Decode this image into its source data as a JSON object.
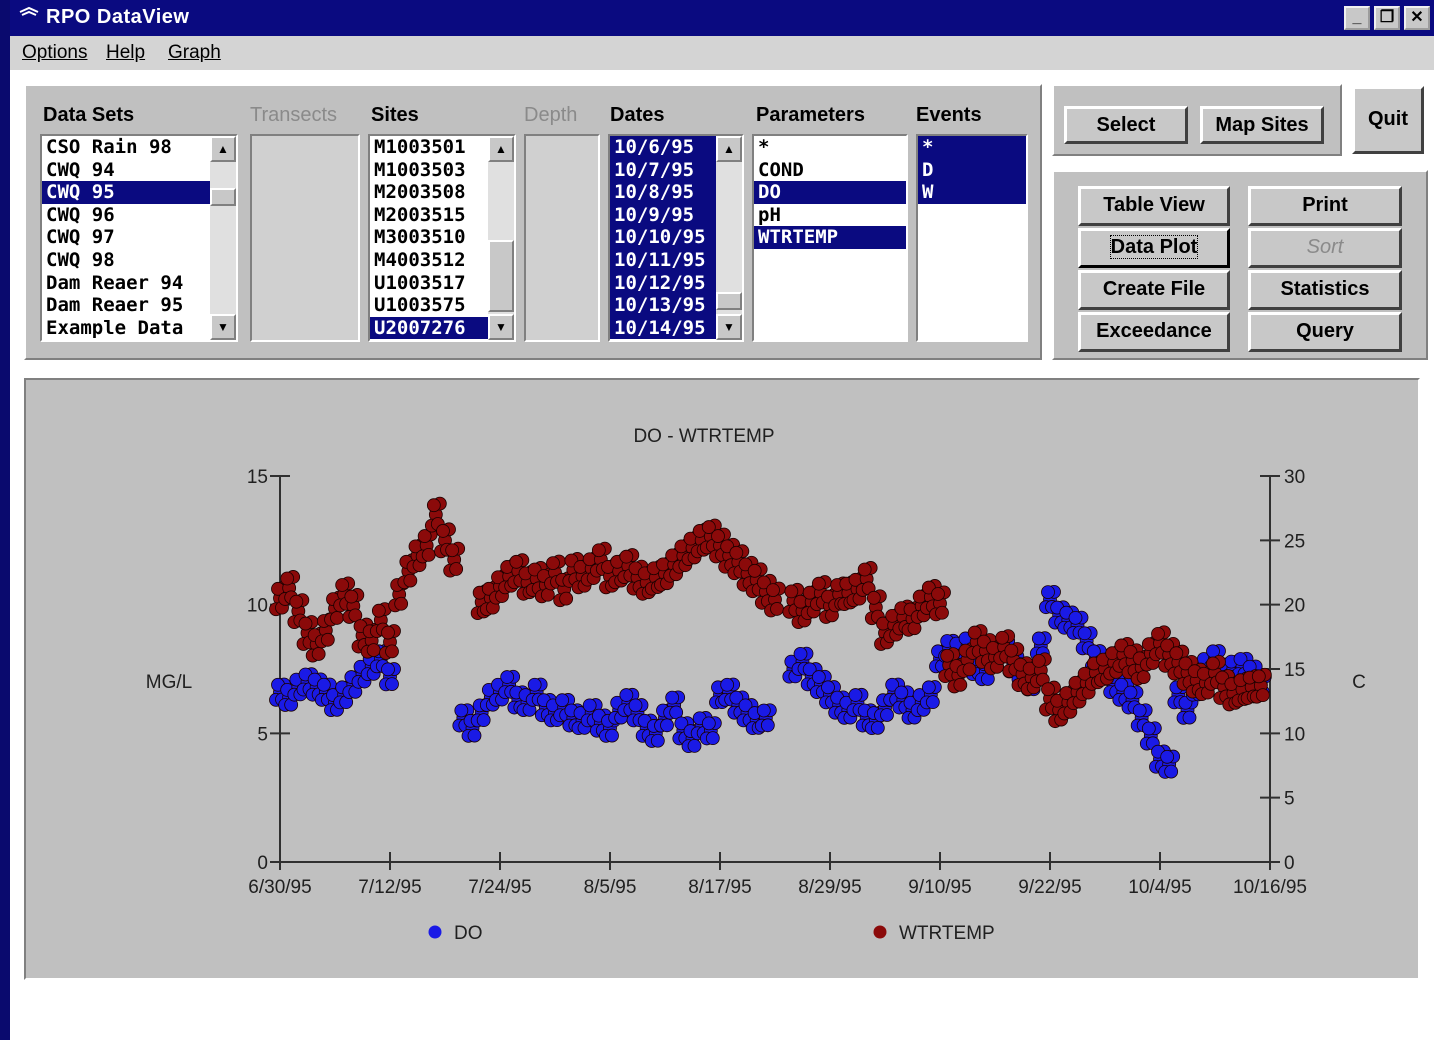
{
  "window": {
    "title": "RPO DataView",
    "controls": [
      "_",
      "❐",
      "✕"
    ]
  },
  "menu": [
    {
      "label": "Options"
    },
    {
      "label": "Help"
    },
    {
      "label": "Graph"
    }
  ],
  "headers": {
    "data_sets": "Data Sets",
    "transects": "Transects",
    "sites": "Sites",
    "depth": "Depth",
    "dates": "Dates",
    "parameters": "Parameters",
    "events": "Events"
  },
  "data_sets": [
    {
      "label": "CSO Rain 98",
      "selected": false
    },
    {
      "label": "CWQ 94",
      "selected": false
    },
    {
      "label": "CWQ 95",
      "selected": true
    },
    {
      "label": "CWQ 96",
      "selected": false
    },
    {
      "label": "CWQ 97",
      "selected": false
    },
    {
      "label": "CWQ 98",
      "selected": false
    },
    {
      "label": "Dam Reaer 94",
      "selected": false
    },
    {
      "label": "Dam Reaer 95",
      "selected": false
    },
    {
      "label": "Example Data",
      "selected": false
    }
  ],
  "sites": [
    {
      "label": "M1003501",
      "selected": false
    },
    {
      "label": "M1003503",
      "selected": false
    },
    {
      "label": "M2003508",
      "selected": false
    },
    {
      "label": "M2003515",
      "selected": false
    },
    {
      "label": "M3003510",
      "selected": false
    },
    {
      "label": "M4003512",
      "selected": false
    },
    {
      "label": "U1003517",
      "selected": false
    },
    {
      "label": "U1003575",
      "selected": false
    },
    {
      "label": "U2007276",
      "selected": true
    }
  ],
  "dates": [
    {
      "label": "10/6/95",
      "selected": true
    },
    {
      "label": "10/7/95",
      "selected": true
    },
    {
      "label": "10/8/95",
      "selected": true
    },
    {
      "label": "10/9/95",
      "selected": true
    },
    {
      "label": "10/10/95",
      "selected": true
    },
    {
      "label": "10/11/95",
      "selected": true
    },
    {
      "label": "10/12/95",
      "selected": true
    },
    {
      "label": "10/13/95",
      "selected": true
    },
    {
      "label": "10/14/95",
      "selected": true
    }
  ],
  "parameters": [
    {
      "label": "*",
      "selected": false
    },
    {
      "label": "COND",
      "selected": false
    },
    {
      "label": "DO",
      "selected": true
    },
    {
      "label": "pH",
      "selected": false
    },
    {
      "label": "WTRTEMP",
      "selected": true
    }
  ],
  "events": [
    {
      "label": "*",
      "selected": true
    },
    {
      "label": "D",
      "selected": true
    },
    {
      "label": "W",
      "selected": true
    }
  ],
  "buttons": {
    "select": "Select",
    "map_sites": "Map Sites",
    "quit": "Quit",
    "table_view": "Table View",
    "print": "Print",
    "data_plot": "Data Plot",
    "sort": "Sort",
    "create_file": "Create File",
    "statistics": "Statistics",
    "exceedance": "Exceedance",
    "query": "Query"
  },
  "colors": {
    "selection": "#0a0a80",
    "do_series": "#1a1ae6",
    "wtrtemp_series": "#8b0a0a"
  },
  "chart_data": {
    "type": "scatter",
    "title": "DO - WTRTEMP",
    "ylabel": "MG/L",
    "y2label": "C",
    "ylim": [
      0,
      15
    ],
    "y2lim": [
      0,
      30
    ],
    "yticks": [
      0,
      5,
      10,
      15
    ],
    "y2ticks": [
      0,
      5,
      10,
      15,
      20,
      25,
      30
    ],
    "xlim": [
      "6/30/95",
      "10/16/95"
    ],
    "xticks": [
      "6/30/95",
      "7/12/95",
      "7/24/95",
      "8/5/95",
      "8/17/95",
      "8/29/95",
      "9/10/95",
      "9/22/95",
      "10/4/95",
      "10/16/95"
    ],
    "legend_position": "bottom",
    "series": [
      {
        "name": "DO",
        "axis": "left",
        "color": "#1a1ae6",
        "points": [
          [
            "6/30/95",
            6.6
          ],
          [
            "7/1/95",
            6.4
          ],
          [
            "7/2/95",
            6.8
          ],
          [
            "7/3/95",
            7.0
          ],
          [
            "7/4/95",
            6.8
          ],
          [
            "7/5/95",
            6.6
          ],
          [
            "7/6/95",
            6.2
          ],
          [
            "7/7/95",
            6.5
          ],
          [
            "7/8/95",
            6.9
          ],
          [
            "7/9/95",
            7.3
          ],
          [
            "7/10/95",
            7.6
          ],
          [
            "7/11/95",
            7.9
          ],
          [
            "7/12/95",
            7.2
          ],
          [
            "7/20/95",
            5.6
          ],
          [
            "7/21/95",
            5.2
          ],
          [
            "7/22/95",
            5.8
          ],
          [
            "7/23/95",
            6.4
          ],
          [
            "7/24/95",
            6.6
          ],
          [
            "7/25/95",
            6.9
          ],
          [
            "7/26/95",
            6.3
          ],
          [
            "7/27/95",
            6.2
          ],
          [
            "7/28/95",
            6.6
          ],
          [
            "7/29/95",
            6.0
          ],
          [
            "7/30/95",
            5.8
          ],
          [
            "7/31/95",
            6.0
          ],
          [
            "8/1/95",
            5.6
          ],
          [
            "8/2/95",
            5.5
          ],
          [
            "8/3/95",
            5.8
          ],
          [
            "8/4/95",
            5.4
          ],
          [
            "8/5/95",
            5.2
          ],
          [
            "8/6/95",
            5.9
          ],
          [
            "8/7/95",
            6.2
          ],
          [
            "8/8/95",
            5.8
          ],
          [
            "8/9/95",
            5.2
          ],
          [
            "8/10/95",
            5.0
          ],
          [
            "8/11/95",
            5.6
          ],
          [
            "8/12/95",
            6.1
          ],
          [
            "8/13/95",
            5.1
          ],
          [
            "8/14/95",
            4.8
          ],
          [
            "8/15/95",
            5.3
          ],
          [
            "8/16/95",
            5.1
          ],
          [
            "8/17/95",
            6.5
          ],
          [
            "8/18/95",
            6.6
          ],
          [
            "8/19/95",
            6.1
          ],
          [
            "8/20/95",
            5.8
          ],
          [
            "8/21/95",
            5.5
          ],
          [
            "8/22/95",
            5.6
          ],
          [
            "8/25/95",
            7.5
          ],
          [
            "8/26/95",
            7.8
          ],
          [
            "8/27/95",
            7.2
          ],
          [
            "8/28/95",
            6.9
          ],
          [
            "8/29/95",
            6.5
          ],
          [
            "8/30/95",
            6.1
          ],
          [
            "8/31/95",
            5.9
          ],
          [
            "9/1/95",
            6.2
          ],
          [
            "9/2/95",
            5.6
          ],
          [
            "9/3/95",
            5.5
          ],
          [
            "9/4/95",
            6.0
          ],
          [
            "9/5/95",
            6.6
          ],
          [
            "9/6/95",
            6.3
          ],
          [
            "9/7/95",
            5.9
          ],
          [
            "9/8/95",
            6.2
          ],
          [
            "9/9/95",
            6.5
          ],
          [
            "9/10/95",
            7.9
          ],
          [
            "9/11/95",
            8.3
          ],
          [
            "9/12/95",
            8.2
          ],
          [
            "9/13/95",
            8.4
          ],
          [
            "9/14/95",
            7.6
          ],
          [
            "9/15/95",
            7.4
          ],
          [
            "9/16/95",
            7.9
          ],
          [
            "9/17/95",
            8.3
          ],
          [
            "9/18/95",
            7.7
          ],
          [
            "9/19/95",
            7.4
          ],
          [
            "9/20/95",
            7.0
          ],
          [
            "9/21/95",
            8.4
          ],
          [
            "9/22/95",
            10.2
          ],
          [
            "9/23/95",
            9.6
          ],
          [
            "9/24/95",
            9.4
          ],
          [
            "9/25/95",
            9.2
          ],
          [
            "9/26/95",
            8.6
          ],
          [
            "9/27/95",
            7.9
          ],
          [
            "9/28/95",
            7.4
          ],
          [
            "9/29/95",
            6.9
          ],
          [
            "9/30/95",
            6.6
          ],
          [
            "10/1/95",
            6.3
          ],
          [
            "10/2/95",
            5.6
          ],
          [
            "10/3/95",
            4.9
          ],
          [
            "10/4/95",
            4.0
          ],
          [
            "10/5/95",
            3.8
          ],
          [
            "10/6/95",
            6.5
          ],
          [
            "10/7/95",
            5.9
          ],
          [
            "10/8/95",
            6.8
          ],
          [
            "10/9/95",
            7.6
          ],
          [
            "10/10/95",
            7.9
          ],
          [
            "10/11/95",
            7.4
          ],
          [
            "10/12/95",
            7.5
          ],
          [
            "10/13/95",
            7.6
          ],
          [
            "10/14/95",
            7.3
          ],
          [
            "10/15/95",
            6.9
          ]
        ]
      },
      {
        "name": "WTRTEMP",
        "axis": "right",
        "color": "#8b0a0a",
        "points": [
          [
            "6/30/95",
            20.5
          ],
          [
            "7/1/95",
            21.3
          ],
          [
            "7/2/95",
            19.5
          ],
          [
            "7/3/95",
            17.8
          ],
          [
            "7/4/95",
            16.9
          ],
          [
            "7/5/95",
            18.0
          ],
          [
            "7/6/95",
            19.7
          ],
          [
            "7/7/95",
            20.8
          ],
          [
            "7/8/95",
            19.9
          ],
          [
            "7/9/95",
            17.6
          ],
          [
            "7/10/95",
            17.2
          ],
          [
            "7/11/95",
            18.8
          ],
          [
            "7/12/95",
            17.1
          ],
          [
            "7/13/95",
            20.8
          ],
          [
            "7/14/95",
            22.6
          ],
          [
            "7/15/95",
            23.8
          ],
          [
            "7/16/95",
            24.6
          ],
          [
            "7/17/95",
            27.0
          ],
          [
            "7/18/95",
            25.0
          ],
          [
            "7/19/95",
            23.5
          ],
          [
            "7/22/95",
            20.2
          ],
          [
            "7/23/95",
            20.5
          ],
          [
            "7/24/95",
            21.4
          ],
          [
            "7/25/95",
            22.2
          ],
          [
            "7/26/95",
            22.6
          ],
          [
            "7/27/95",
            21.7
          ],
          [
            "7/28/95",
            22.0
          ],
          [
            "7/29/95",
            21.5
          ],
          [
            "7/30/95",
            22.5
          ],
          [
            "7/31/95",
            21.2
          ],
          [
            "8/1/95",
            22.7
          ],
          [
            "8/2/95",
            22.2
          ],
          [
            "8/3/95",
            22.8
          ],
          [
            "8/4/95",
            23.5
          ],
          [
            "8/5/95",
            22.2
          ],
          [
            "8/6/95",
            22.6
          ],
          [
            "8/7/95",
            23.0
          ],
          [
            "8/8/95",
            22.1
          ],
          [
            "8/9/95",
            21.7
          ],
          [
            "8/10/95",
            22.1
          ],
          [
            "8/11/95",
            22.4
          ],
          [
            "8/12/95",
            23.1
          ],
          [
            "8/13/95",
            23.8
          ],
          [
            "8/14/95",
            24.4
          ],
          [
            "8/15/95",
            25.0
          ],
          [
            "8/16/95",
            25.3
          ],
          [
            "8/17/95",
            24.6
          ],
          [
            "8/18/95",
            23.8
          ],
          [
            "8/19/95",
            23.3
          ],
          [
            "8/20/95",
            22.4
          ],
          [
            "8/21/95",
            21.9
          ],
          [
            "8/22/95",
            21.0
          ],
          [
            "8/23/95",
            20.4
          ],
          [
            "8/25/95",
            20.3
          ],
          [
            "8/26/95",
            19.5
          ],
          [
            "8/27/95",
            20.2
          ],
          [
            "8/28/95",
            20.9
          ],
          [
            "8/29/95",
            19.9
          ],
          [
            "8/30/95",
            20.8
          ],
          [
            "8/31/95",
            20.9
          ],
          [
            "9/1/95",
            21.2
          ],
          [
            "9/2/95",
            22.0
          ],
          [
            "9/3/95",
            19.8
          ],
          [
            "9/4/95",
            17.8
          ],
          [
            "9/5/95",
            18.4
          ],
          [
            "9/6/95",
            19.0
          ],
          [
            "9/7/95",
            18.9
          ],
          [
            "9/8/95",
            19.9
          ],
          [
            "9/9/95",
            20.6
          ],
          [
            "9/10/95",
            20.1
          ],
          [
            "9/11/95",
            15.3
          ],
          [
            "9/12/95",
            14.5
          ],
          [
            "9/13/95",
            15.7
          ],
          [
            "9/14/95",
            17.1
          ],
          [
            "9/15/95",
            16.4
          ],
          [
            "9/16/95",
            15.9
          ],
          [
            "9/17/95",
            16.7
          ],
          [
            "9/18/95",
            15.7
          ],
          [
            "9/19/95",
            14.6
          ],
          [
            "9/20/95",
            14.3
          ],
          [
            "9/21/95",
            14.9
          ],
          [
            "9/22/95",
            12.7
          ],
          [
            "9/23/95",
            11.8
          ],
          [
            "9/24/95",
            12.4
          ],
          [
            "9/25/95",
            13.2
          ],
          [
            "9/26/95",
            13.9
          ],
          [
            "9/27/95",
            14.7
          ],
          [
            "9/28/95",
            15.0
          ],
          [
            "9/29/95",
            15.5
          ],
          [
            "9/30/95",
            16.1
          ],
          [
            "10/1/95",
            15.6
          ],
          [
            "10/2/95",
            15.1
          ],
          [
            "10/3/95",
            16.2
          ],
          [
            "10/4/95",
            17.0
          ],
          [
            "10/5/95",
            16.1
          ],
          [
            "10/6/95",
            15.5
          ],
          [
            "10/7/95",
            14.7
          ],
          [
            "10/8/95",
            14.1
          ],
          [
            "10/9/95",
            13.9
          ],
          [
            "10/10/95",
            14.7
          ],
          [
            "10/11/95",
            13.6
          ],
          [
            "10/12/95",
            13.1
          ],
          [
            "10/13/95",
            13.4
          ],
          [
            "10/14/95",
            13.6
          ],
          [
            "10/15/95",
            13.7
          ]
        ]
      }
    ]
  }
}
